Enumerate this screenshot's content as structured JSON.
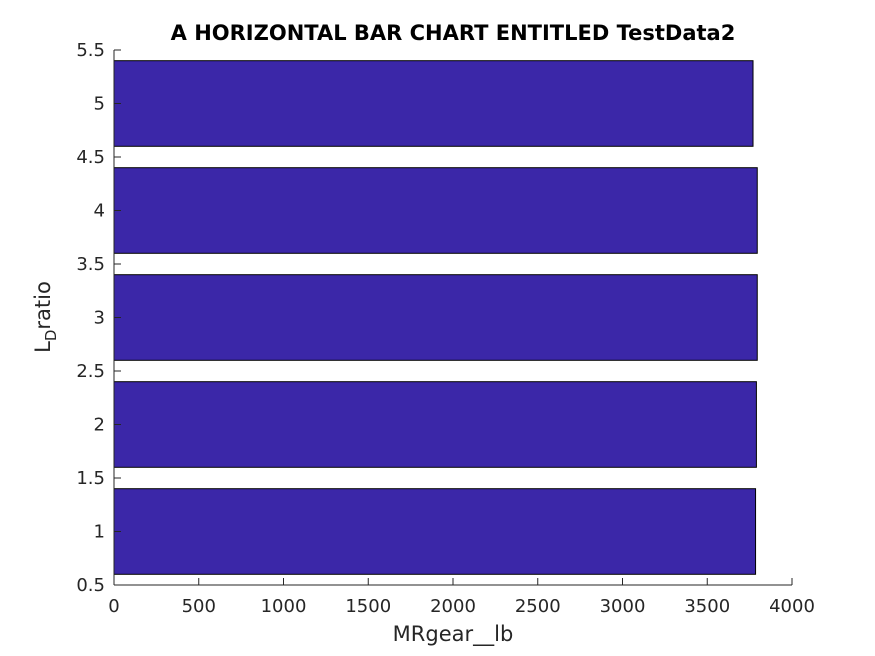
{
  "chart_data": {
    "type": "bar",
    "orientation": "horizontal",
    "title": "A HORIZONTAL BAR CHART ENTITLED TestData2",
    "xlabel": "MRgear__lb",
    "ylabel": {
      "main": "L",
      "subscript": "D",
      "suffix": "ratio"
    },
    "categories": [
      1,
      2,
      3,
      4,
      5
    ],
    "values": [
      3785,
      3790,
      3795,
      3795,
      3770
    ],
    "xlim": [
      0,
      4000
    ],
    "ylim": [
      0.5,
      5.5
    ],
    "xticks": [
      0,
      500,
      1000,
      1500,
      2000,
      2500,
      3000,
      3500,
      4000
    ],
    "yticks": [
      "0.5",
      "1",
      "1.5",
      "2",
      "2.5",
      "3",
      "3.5",
      "4",
      "4.5",
      "5",
      "5.5"
    ],
    "bar_color": "#3b27a8",
    "grid": false,
    "legend": "none"
  }
}
